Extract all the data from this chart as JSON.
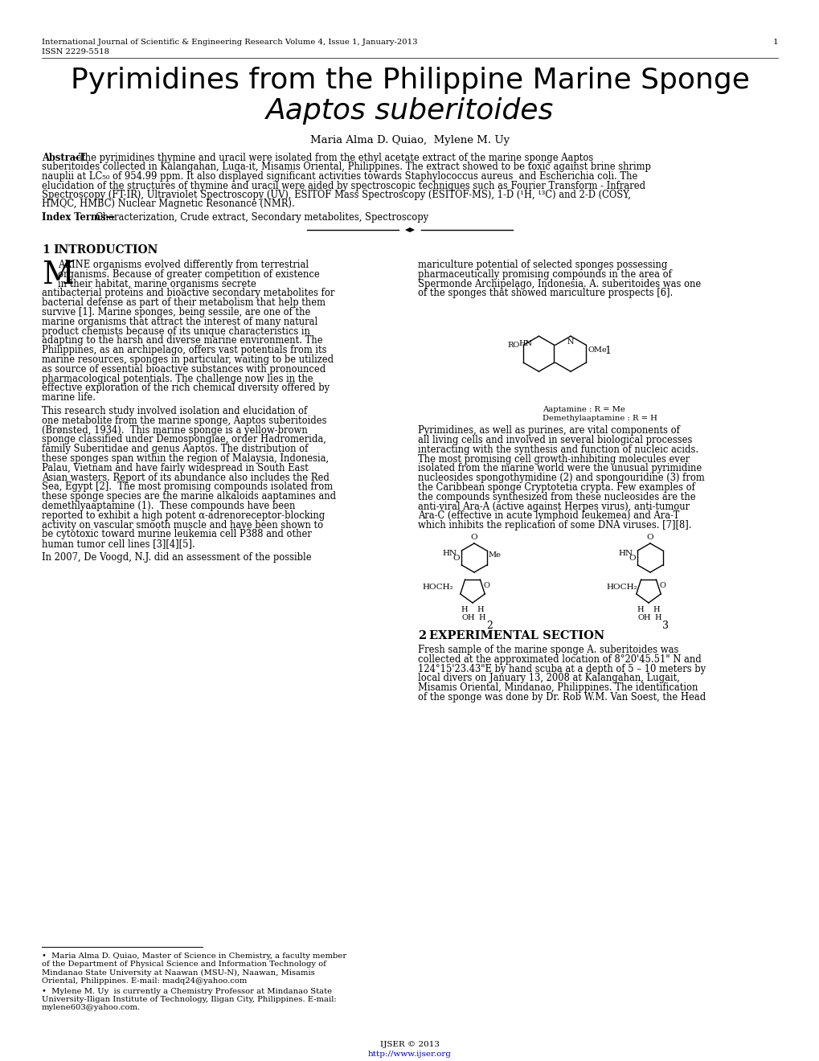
{
  "background_color": "#ffffff",
  "header_line1": "International Journal of Scientific & Engineering Research Volume 4, Issue 1, January-2013",
  "header_page": "1",
  "header_line2": "ISSN 2229-5518",
  "title_line1": "Pyrimidines from the Philippine Marine Sponge",
  "title_line2": "Aaptos suberitoides",
  "authors": "Maria Alma D. Quiao,  Mylene M. Uy",
  "abstract_lines": [
    "The pyrimidines thymine and uracil were isolated from the ethyl acetate extract of the marine sponge Aaptos",
    "suberitoides collected in Kalangahan, Luga-it, Misamis Oriental, Philippines. The extract showed to be toxic against brine shrimp",
    "nauplii at LC₅₀ of 954.99 ppm. It also displayed significant activities towards Staphylococcus aureus  and Escherichia coli. The",
    "elucidation of the structures of thymine and uracil were aided by spectroscopic techniques such as Fourier Transform - Infrared",
    "Spectroscopy (FT-IR), Ultraviolet Spectroscopy (UV), ESITOF Mass Spectroscopy (ESITOF-MS), 1-D (¹H, ¹³C) and 2-D (COSY,",
    "HMQC, HMBC) Nuclear Magnetic Resonance (NMR)."
  ],
  "index_terms": "Characterization, Crude extract, Secondary metabolites, Spectroscopy",
  "col1_intro_lines": [
    "ARINE organisms evolved differently from terrestrial",
    "organisms. Because of greater competition of existence",
    "in their habitat, marine organisms secrete",
    "antibacterial proteins and bioactive secondary metabolites for",
    "bacterial defense as part of their metabolism that help them",
    "survive [1]. Marine sponges, being sessile, are one of the",
    "marine organisms that attract the interest of many natural",
    "product chemists because of its unique characteristics in",
    "adapting to the harsh and diverse marine environment. The",
    "Philippines, as an archipelago, offers vast potentials from its",
    "marine resources, sponges in particular, waiting to be utilized",
    "as source of essential bioactive substances with pronounced",
    "pharmacological potentials. The challenge now lies in the",
    "effective exploration of the rich chemical diversity offered by",
    "marine life."
  ],
  "col1_para2_lines": [
    "This research study involved isolation and elucidation of",
    "one metabolite from the marine sponge, Aaptos suberitoides",
    "(Brønsted, 1934).  This marine sponge is a yellow-brown",
    "sponge classified under Demospongiae, order Hadromerida,",
    "family Suberitidae and genus Aaptos. The distribution of",
    "these sponges span within the region of Malaysia, Indonesia,",
    "Palau, Vietnam and have fairly widespread in South East",
    "Asian wasters. Report of its abundance also includes the Red",
    "Sea, Egypt [2].  The most promising compounds isolated from",
    "these sponge species are the marine alkaloids aaptamines and",
    "demethlyaaptamine (1).  These compounds have been",
    "reported to exhibit a high potent α-adrenoreceptor-blocking",
    "activity on vascular smooth muscle and have been shown to",
    "be cytotoxic toward murine leukemia cell P388 and other",
    "human tumor cell lines [3][4][5]."
  ],
  "col1_para3_lines": [
    "In 2007, De Voogd, N.J. did an assessment of the possible"
  ],
  "col2_para1_lines": [
    "mariculture potential of selected sponges possessing",
    "pharmaceutically promising compounds in the area of",
    "Spermonde Archipelago, Indonesia. A. suberitoides was one",
    "of the sponges that showed mariculture prospects [6]."
  ],
  "col2_para2_lines": [
    "Pyrimidines, as well as purines, are vital components of",
    "all living cells and involved in several biological processes",
    "interacting with the synthesis and function of nucleic acids.",
    "The most promising cell growth-inhibiting molecules ever",
    "isolated from the marine world were the unusual pyrimidine",
    "nucleosides spongothymidine (2) and spongouridine (3) from",
    "the Caribbean sponge Cryptotetia crypta. Few examples of",
    "the compounds synthesized from these nucleosides are the",
    "anti-viral Ara-A (active against Herpes virus), anti-tumour",
    "Ara-C (effective in acute lymphoid leukemea) and Ara-T",
    "which inhibits the replication of some DNA viruses. [7][8]."
  ],
  "sec2_lines": [
    "Fresh sample of the marine sponge A. suberitoides was",
    "collected at the approximated location of 8°20'45.51\" N and",
    "124°15'23.43\"E by hand scuba at a depth of 5 – 10 meters by",
    "local divers on January 13, 2008 at Kalangahan, Lugait,",
    "Misamis Oriental, Mindanao, Philippines. The identification",
    "of the sponge was done by Dr. Rob W.M. Van Soest, the Head"
  ],
  "fn1_lines": [
    "•  Maria Alma D. Quiao, Master of Science in Chemistry, a faculty member",
    "of the Department of Physical Science and Information Technology of",
    "Mindanao State University at Naawan (MSU-N), Naawan, Misamis",
    "Oriental, Philippines. E-mail: madq24@yahoo.com"
  ],
  "fn2_lines": [
    "•  Mylene M. Uy  is currently a Chemistry Professor at Mindanao State",
    "University-Iligan Institute of Technology, Iligan City, Philippines. E-mail:",
    "mylene603@yahoo.com."
  ],
  "footer_text": "IJSER © 2013",
  "footer_url": "http://www.ijser.org"
}
